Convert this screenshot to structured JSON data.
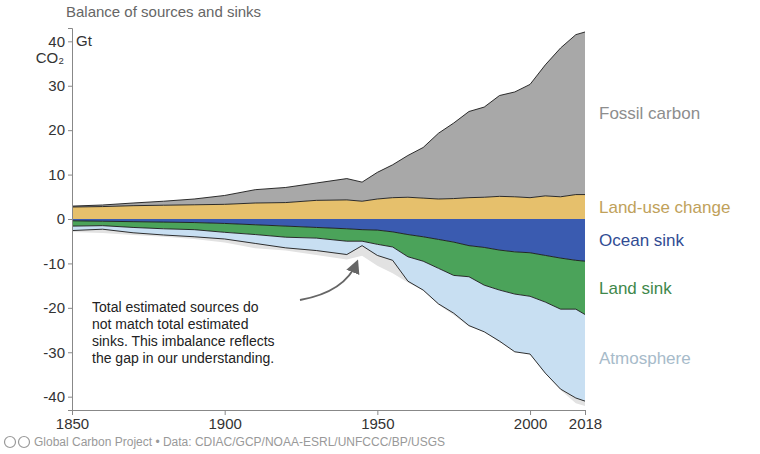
{
  "chart_data": {
    "type": "stacked_area",
    "title": "Balance of sources and sinks",
    "y_label": [
      "Gt",
      "CO₂"
    ],
    "source": "Global Carbon Project • Data: CDIAC/GCP/NOAA-ESRL/UNFCCC/BP/USGS",
    "annotation": [
      "Total estimated sources do",
      "not match total estimated",
      "sinks. This imbalance reflects",
      "the gap in our understanding."
    ],
    "stacked": true,
    "x": [
      1850,
      1860,
      1870,
      1880,
      1890,
      1900,
      1910,
      1920,
      1930,
      1940,
      1945,
      1950,
      1955,
      1960,
      1965,
      1970,
      1975,
      1980,
      1985,
      1990,
      1995,
      2000,
      2005,
      2010,
      2015,
      2018
    ],
    "xlim": [
      1850,
      2018
    ],
    "xticks": [
      1850,
      1900,
      1950,
      2000,
      2018
    ],
    "ylim": [
      -43,
      43
    ],
    "yticks": [
      40,
      30,
      20,
      10,
      0,
      -10,
      -20,
      -30,
      -40
    ],
    "series": [
      {
        "name": "Land-use change",
        "color": "#e6c06c",
        "values": [
          2.7,
          2.8,
          3.0,
          3.1,
          3.2,
          3.3,
          3.6,
          3.7,
          4.2,
          4.3,
          4.0,
          4.5,
          4.8,
          4.9,
          4.7,
          4.5,
          4.6,
          4.8,
          4.9,
          5.1,
          5.0,
          4.8,
          5.2,
          5.0,
          5.5,
          5.5
        ]
      },
      {
        "name": "Fossil carbon",
        "color": "#a8a8a8",
        "values": [
          0.2,
          0.35,
          0.6,
          0.9,
          1.3,
          2.0,
          3.0,
          3.4,
          3.9,
          4.8,
          4.3,
          6.0,
          7.4,
          9.4,
          11.4,
          14.8,
          17.0,
          19.4,
          20.3,
          22.7,
          23.6,
          25.5,
          29.5,
          33.5,
          36.0,
          36.6
        ]
      },
      {
        "name": "Ocean sink",
        "color": "#3a5bb0",
        "values": [
          -0.4,
          -0.5,
          -0.6,
          -0.7,
          -0.8,
          -1.0,
          -1.3,
          -1.6,
          -1.9,
          -2.2,
          -2.4,
          -2.5,
          -2.9,
          -3.5,
          -4.0,
          -4.6,
          -5.2,
          -6.0,
          -6.4,
          -7.0,
          -7.4,
          -7.6,
          -8.2,
          -8.8,
          -9.3,
          -9.5
        ]
      },
      {
        "name": "Land sink",
        "color": "#4ba35a",
        "values": [
          -1.2,
          -1.0,
          -1.3,
          -1.5,
          -1.6,
          -2.0,
          -2.2,
          -2.5,
          -2.4,
          -2.8,
          -2.6,
          -3.2,
          -3.4,
          -5.0,
          -5.5,
          -6.5,
          -7.5,
          -7.0,
          -8.5,
          -9.0,
          -9.5,
          -9.8,
          -10.5,
          -11.5,
          -11.0,
          -12.0
        ]
      },
      {
        "name": "Atmosphere",
        "color": "#c8dff2",
        "values": [
          -1.0,
          -0.8,
          -1.2,
          -1.4,
          -1.6,
          -1.5,
          -2.0,
          -2.4,
          -2.8,
          -3.0,
          -1.0,
          -2.5,
          -3.0,
          -5.5,
          -6.5,
          -8.0,
          -8.5,
          -11.0,
          -10.5,
          -11.5,
          -13.0,
          -13.0,
          -16.0,
          -18.0,
          -20.0,
          -19.5
        ]
      }
    ]
  }
}
